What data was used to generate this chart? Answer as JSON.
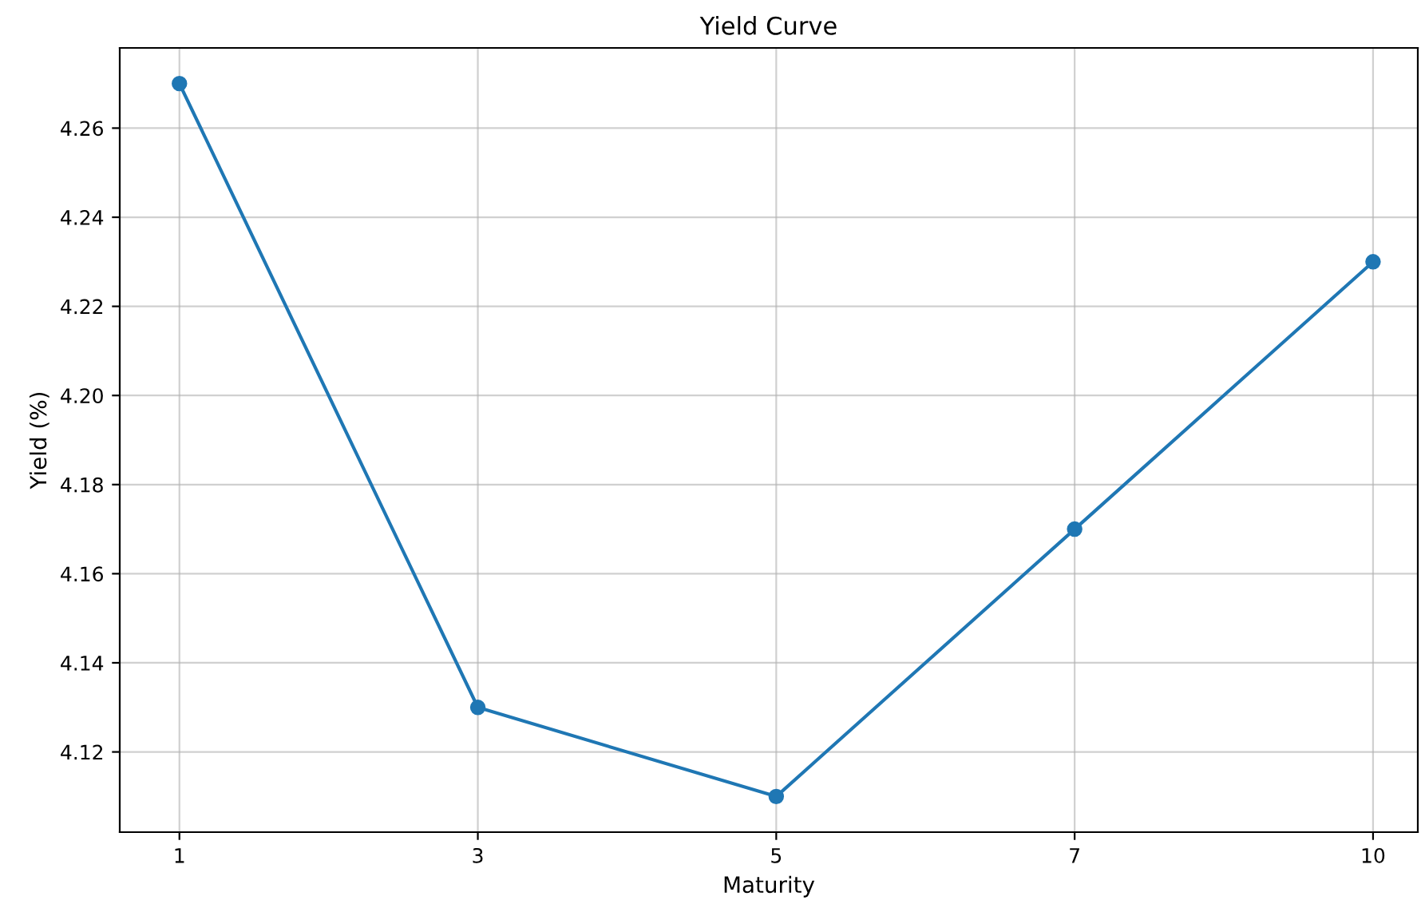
{
  "chart_data": {
    "type": "line",
    "title": "Yield Curve",
    "xlabel": "Maturity",
    "ylabel": "Yield (%)",
    "categories": [
      "1",
      "3",
      "5",
      "7",
      "10"
    ],
    "series": [
      {
        "color": "#1f77b4",
        "values": [
          4.27,
          4.13,
          4.11,
          4.17,
          4.23
        ]
      }
    ],
    "ylim": [
      4.102,
      4.278
    ],
    "yticks": [
      4.12,
      4.14,
      4.16,
      4.18,
      {
        "value": 4.2,
        "label": "4.20"
      },
      4.22,
      4.24,
      4.26
    ],
    "grid": true,
    "marker": "circle",
    "line_style": "solid"
  }
}
